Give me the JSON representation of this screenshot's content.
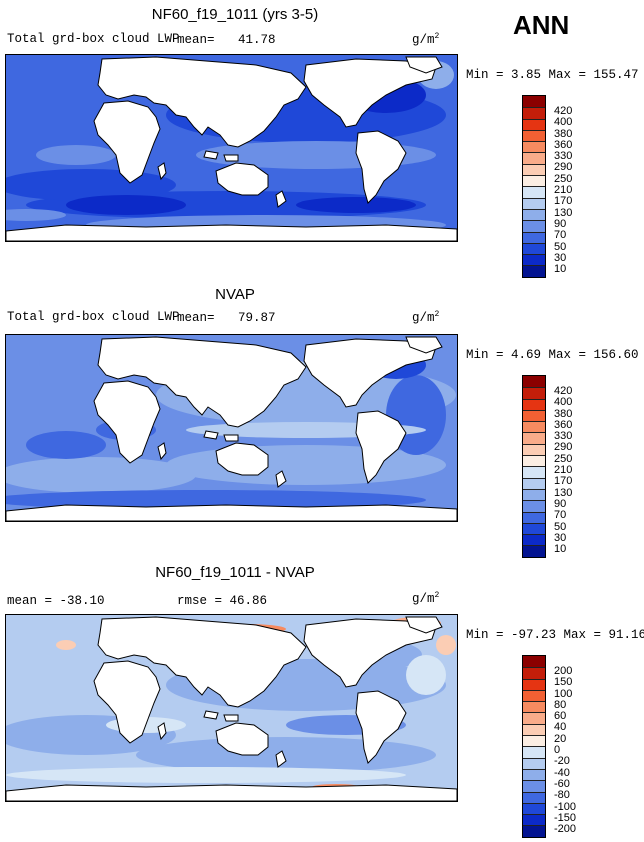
{
  "season": "ANN",
  "units": "g/m",
  "units_sup": "2",
  "panels": [
    {
      "title": "NF60_f19_1011 (yrs 3-5)",
      "variable": "Total grd-box cloud LWP",
      "stat_label": "mean=",
      "stat_value": "41.78",
      "min_max": "Min =    3.85 Max = 155.47",
      "levels": [
        "420",
        "400",
        "380",
        "360",
        "330",
        "290",
        "250",
        "210",
        "170",
        "130",
        "90",
        "70",
        "50",
        "30",
        "10"
      ],
      "colors": [
        "#8b0000",
        "#c41e0a",
        "#e53412",
        "#f26033",
        "#f78b60",
        "#f9ac8a",
        "#fbcdb4",
        "#fbeee3",
        "#d6e6f6",
        "#b4ccf0",
        "#8eaeea",
        "#6b8fe6",
        "#3f68e0",
        "#1f48d8",
        "#0c2ac8",
        "#031491"
      ]
    },
    {
      "title": "NVAP",
      "variable": "Total grd-box cloud LWP",
      "stat_label": "mean=",
      "stat_value": "79.87",
      "min_max": "Min =    4.69 Max = 156.60",
      "levels": [
        "420",
        "400",
        "380",
        "360",
        "330",
        "290",
        "250",
        "210",
        "170",
        "130",
        "90",
        "70",
        "50",
        "30",
        "10"
      ],
      "colors": [
        "#8b0000",
        "#c41e0a",
        "#e53412",
        "#f26033",
        "#f78b60",
        "#f9ac8a",
        "#fbcdb4",
        "#fbeee3",
        "#d6e6f6",
        "#b4ccf0",
        "#8eaeea",
        "#6b8fe6",
        "#3f68e0",
        "#1f48d8",
        "#0c2ac8",
        "#031491"
      ]
    },
    {
      "title": "NF60_f19_1011 - NVAP",
      "mean_text": "mean = -38.10",
      "rmse_text": "rmse =  46.86",
      "min_max": "Min = -97.23 Max =  91.16",
      "levels": [
        "200",
        "150",
        "100",
        "80",
        "60",
        "40",
        "20",
        "0",
        "-20",
        "-40",
        "-60",
        "-80",
        "-100",
        "-150",
        "-200"
      ],
      "colors": [
        "#8b0000",
        "#c41e0a",
        "#e53412",
        "#f26033",
        "#f78b60",
        "#f9ac8a",
        "#fbcdb4",
        "#fbeee3",
        "#d6e6f6",
        "#b4ccf0",
        "#8eaeea",
        "#6b8fe6",
        "#3f68e0",
        "#1f48d8",
        "#0c2ac8",
        "#031491"
      ]
    }
  ]
}
